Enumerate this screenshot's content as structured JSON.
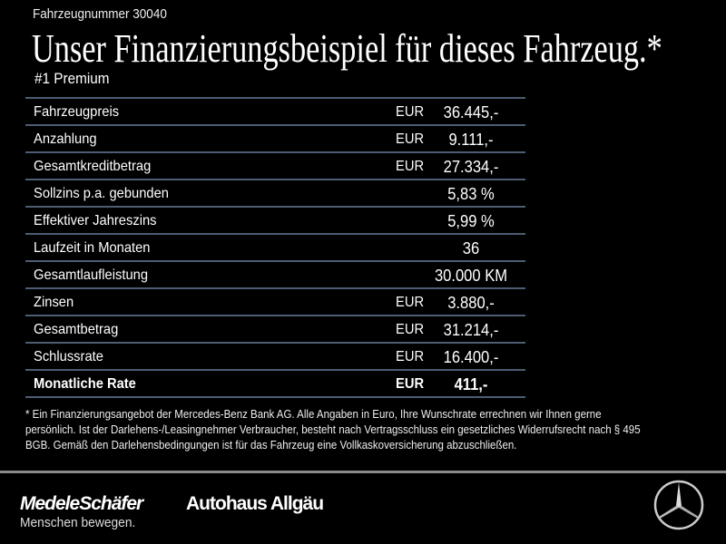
{
  "header": {
    "vehicle_number": "Fahrzeugnummer 30040",
    "title": "Unser Finanzierungsbeispiel für dieses Fahrzeug.*",
    "subtitle": "#1 Premium"
  },
  "table": {
    "rows": [
      {
        "label": "Fahrzeugpreis",
        "currency": "EUR",
        "value": "36.445,-"
      },
      {
        "label": "Anzahlung",
        "currency": "EUR",
        "value": "9.111,-"
      },
      {
        "label": "Gesamtkreditbetrag",
        "currency": "EUR",
        "value": "27.334,-"
      },
      {
        "label": "Sollzins p.a. gebunden",
        "currency": "",
        "value": "5,83 %"
      },
      {
        "label": "Effektiver Jahreszins",
        "currency": "",
        "value": "5,99 %"
      },
      {
        "label": "Laufzeit in Monaten",
        "currency": "",
        "value": "36"
      },
      {
        "label": "Gesamtlaufleistung",
        "currency": "",
        "value": "30.000 KM"
      },
      {
        "label": "Zinsen",
        "currency": "EUR",
        "value": "3.880,-"
      },
      {
        "label": "Gesamtbetrag",
        "currency": "EUR",
        "value": "31.214,-"
      },
      {
        "label": "Schlussrate",
        "currency": "EUR",
        "value": "16.400,-"
      },
      {
        "label": "Monatliche Rate",
        "currency": "EUR",
        "value": "411,-"
      }
    ]
  },
  "footnote": "* Ein Finanzierungsangebot der Mercedes-Benz Bank AG. Alle Angaben in Euro, Ihre Wunschrate errechnen wir Ihnen gerne persönlich. Ist der Darlehens-/Leasingnehmer Verbraucher, besteht nach Vertragsschluss ein gesetzliches Widerrufsrecht nach § 495 BGB. Gemäß den Darlehensbedingungen ist für das Fahrzeug eine Vollkaskoversicherung abzuschließen.",
  "footer": {
    "brand1": "MedeleSchäfer",
    "brand2": "Autohaus Allgäu",
    "slogan": "Menschen bewegen."
  },
  "colors": {
    "background": "#000000",
    "row_divider": "#4d5d74"
  }
}
